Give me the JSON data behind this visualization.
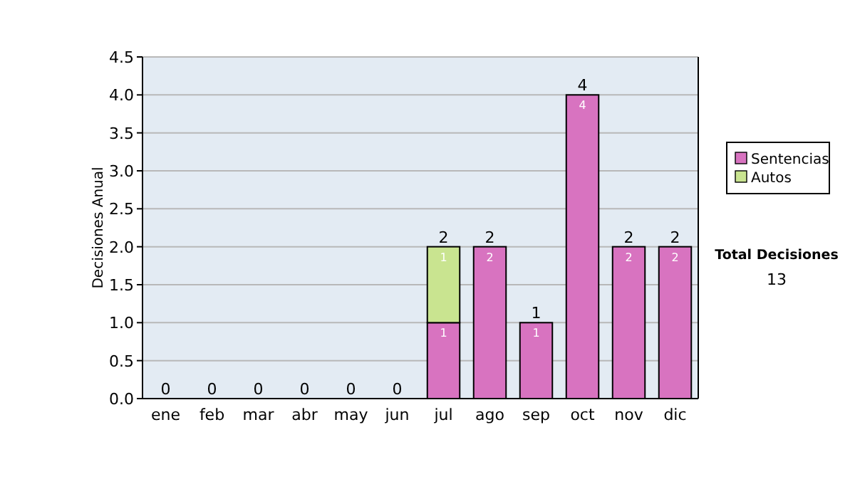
{
  "chart_data": {
    "type": "bar",
    "ylabel": "Decisiones Anual",
    "categories": [
      "ene",
      "feb",
      "mar",
      "abr",
      "may",
      "jun",
      "jul",
      "ago",
      "sep",
      "oct",
      "nov",
      "dic"
    ],
    "series": [
      {
        "name": "Sentencias",
        "color": "#d873c0",
        "values": [
          0,
          0,
          0,
          0,
          0,
          0,
          1,
          2,
          1,
          4,
          2,
          2
        ],
        "value_labels": [
          null,
          null,
          null,
          null,
          null,
          null,
          "1",
          "2",
          "1",
          "4",
          "2",
          "2"
        ]
      },
      {
        "name": "Autos",
        "color": "#c9e490",
        "values": [
          0,
          0,
          0,
          0,
          0,
          0,
          1,
          0,
          0,
          0,
          0,
          0
        ],
        "value_labels": [
          null,
          null,
          null,
          null,
          null,
          null,
          "1",
          null,
          null,
          null,
          null,
          null
        ]
      }
    ],
    "stacked": true,
    "totals": [
      "0",
      "0",
      "0",
      "0",
      "0",
      "0",
      "2",
      "2",
      "1",
      "4",
      "2",
      "2"
    ],
    "ylim": [
      0,
      4.5
    ],
    "yticks": [
      {
        "value": 0,
        "label": "0.0"
      },
      {
        "value": 0.5,
        "label": "0.5"
      },
      {
        "value": 1,
        "label": "1.0"
      },
      {
        "value": 1.5,
        "label": "1.5"
      },
      {
        "value": 2,
        "label": "2.0"
      },
      {
        "value": 2.5,
        "label": "2.5"
      },
      {
        "value": 3,
        "label": "3.0"
      },
      {
        "value": 3.5,
        "label": "3.5"
      },
      {
        "value": 4,
        "label": "4.0"
      },
      {
        "value": 4.5,
        "label": "4.5"
      }
    ],
    "grid": "y",
    "legend": "right",
    "annotations": [
      "Total Decisiones",
      "13"
    ]
  }
}
